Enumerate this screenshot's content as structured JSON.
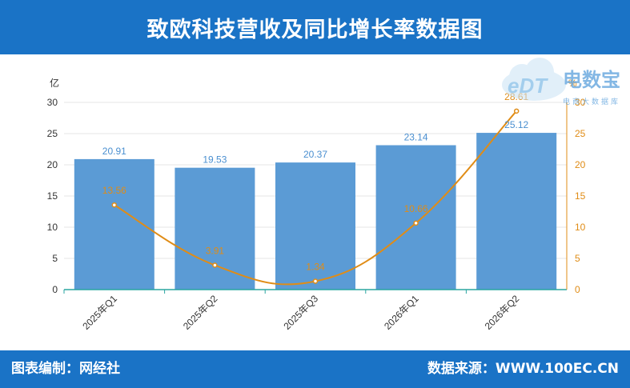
{
  "header": {
    "title": "致欧科技营收及同比增长率数据图"
  },
  "footer": {
    "left": "图表编制：网经社",
    "right": "数据来源：WWW.100EC.CN"
  },
  "watermark": {
    "logo_text": "eDT",
    "name": "电数宝",
    "subtitle": "电商大数据库"
  },
  "colors": {
    "header_bg": "#1a73c6",
    "bar": "#5b9bd5",
    "line": "#e08c16",
    "bar_label": "#4a8fd0",
    "line_label": "#e08c16",
    "axis_text": "#333333",
    "baseline": "#2aa5a0"
  },
  "chart_data": {
    "type": "bar",
    "categories": [
      "2025年Q1",
      "2025年Q2",
      "2025年Q3",
      "2026年Q1",
      "2026年Q2"
    ],
    "series": [
      {
        "type": "bar",
        "axis": "left",
        "values": [
          20.91,
          19.53,
          20.37,
          23.14,
          25.12
        ]
      },
      {
        "type": "line",
        "axis": "right",
        "values": [
          13.56,
          3.91,
          1.34,
          10.66,
          28.61
        ]
      }
    ],
    "y_left": {
      "label": "亿",
      "ylim": [
        0,
        30
      ],
      "ticks": [
        0,
        5,
        10,
        15,
        20,
        25,
        30
      ]
    },
    "y_right": {
      "label": "%",
      "ylim": [
        0,
        30
      ],
      "ticks": [
        0,
        5,
        10,
        15,
        20,
        25,
        30
      ]
    },
    "grid": true,
    "legend": "none"
  }
}
